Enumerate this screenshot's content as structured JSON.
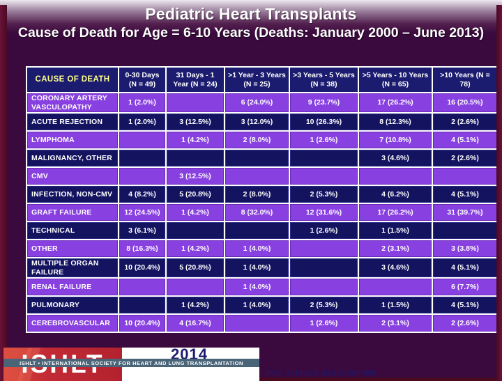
{
  "slide": {
    "title": "Pediatric Heart Transplants",
    "subtitle": "Cause of Death for Age = 6-10 Years (Deaths: January 2000 – June 2013)"
  },
  "table": {
    "corner_header": "CAUSE OF DEATH",
    "column_headers": [
      "0-30 Days (N = 49)",
      "31 Days - 1 Year (N = 24)",
      ">1 Year - 3 Years (N = 25)",
      ">3 Years - 5 Years (N = 38)",
      ">5 Years - 10 Years (N = 65)",
      ">10 Years (N = 78)"
    ],
    "rows": [
      {
        "label": "CORONARY ARTERY VASCULOPATHY",
        "values": [
          "1 (2.0%)",
          "",
          "6 (24.0%)",
          "9 (23.7%)",
          "17 (26.2%)",
          "16 (20.5%)"
        ]
      },
      {
        "label": "ACUTE REJECTION",
        "values": [
          "1 (2.0%)",
          "3 (12.5%)",
          "3 (12.0%)",
          "10 (26.3%)",
          "8 (12.3%)",
          "2 (2.6%)"
        ]
      },
      {
        "label": "LYMPHOMA",
        "values": [
          "",
          "1 (4.2%)",
          "2 (8.0%)",
          "1 (2.6%)",
          "7 (10.8%)",
          "4 (5.1%)"
        ]
      },
      {
        "label": "MALIGNANCY, OTHER",
        "values": [
          "",
          "",
          "",
          "",
          "3 (4.6%)",
          "2 (2.6%)"
        ]
      },
      {
        "label": "CMV",
        "values": [
          "",
          "3 (12.5%)",
          "",
          "",
          "",
          ""
        ]
      },
      {
        "label": "INFECTION, NON-CMV",
        "values": [
          "4 (8.2%)",
          "5 (20.8%)",
          "2 (8.0%)",
          "2 (5.3%)",
          "4 (6.2%)",
          "4 (5.1%)"
        ]
      },
      {
        "label": "GRAFT FAILURE",
        "values": [
          "12 (24.5%)",
          "1 (4.2%)",
          "8 (32.0%)",
          "12 (31.6%)",
          "17 (26.2%)",
          "31 (39.7%)"
        ]
      },
      {
        "label": "TECHNICAL",
        "values": [
          "3 (6.1%)",
          "",
          "",
          "1 (2.6%)",
          "1 (1.5%)",
          ""
        ]
      },
      {
        "label": "OTHER",
        "values": [
          "8 (16.3%)",
          "1 (4.2%)",
          "1 (4.0%)",
          "",
          "2 (3.1%)",
          "3 (3.8%)"
        ]
      },
      {
        "label": "MULTIPLE ORGAN FAILURE",
        "values": [
          "10 (20.4%)",
          "5 (20.8%)",
          "1 (4.0%)",
          "",
          "3 (4.6%)",
          "4 (5.1%)"
        ]
      },
      {
        "label": "RENAL FAILURE",
        "values": [
          "",
          "",
          "1 (4.0%)",
          "",
          "",
          "6 (7.7%)"
        ]
      },
      {
        "label": "PULMONARY",
        "values": [
          "",
          "1 (4.2%)",
          "1 (4.0%)",
          "2 (5.3%)",
          "1 (1.5%)",
          "4 (5.1%)"
        ]
      },
      {
        "label": "CEREBROVASCULAR",
        "values": [
          "10 (20.4%)",
          "4 (16.7%)",
          "",
          "1 (2.6%)",
          "2 (3.1%)",
          "2 (2.6%)"
        ]
      }
    ]
  },
  "footer": {
    "logo_text": "ISHLT",
    "logo_banner": "ISHLT • INTERNATIONAL SOCIETY FOR HEART AND LUNG TRANSPLANTATION",
    "year": "2014",
    "citation": "JHLT. 2014 Oct; 33(10): 985-995"
  },
  "colors": {
    "background_purple": "#3a093d",
    "edge_maroon": "#5e0f2f",
    "row_violet": "#8840e0",
    "row_navy": "#131360",
    "header_navy": "#1b1b6f",
    "corner_yellow": "#ffff8c",
    "grid_white": "#ffffff",
    "logo_red": "#c32b35",
    "banner_slate": "#4a6478",
    "citation_navy": "#1b1b6f"
  }
}
